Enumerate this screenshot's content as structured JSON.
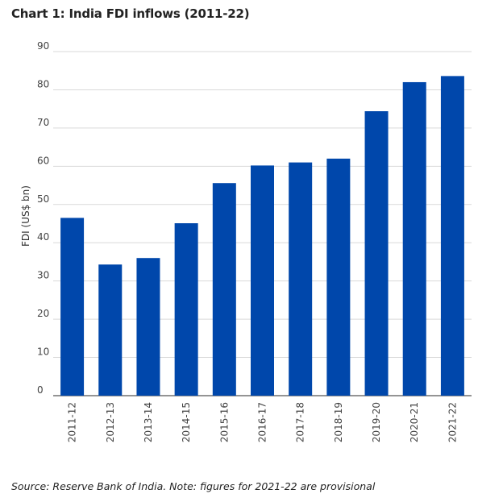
{
  "chart_data": {
    "type": "bar",
    "title": "Chart 1: India FDI inflows (2011-22)",
    "ylabel": "FDI (US$ bn)",
    "xlabel": "",
    "categories": [
      "2011-12",
      "2012-13",
      "2013-14",
      "2014-15",
      "2015-16",
      "2016-17",
      "2017-18",
      "2018-19",
      "2019-20",
      "2020-21",
      "2021-22"
    ],
    "values": [
      46.5,
      34.3,
      36.0,
      45.1,
      55.6,
      60.2,
      61.0,
      62.0,
      74.4,
      82.0,
      83.6
    ],
    "ylim": [
      0,
      90
    ],
    "yticks": [
      0,
      10,
      20,
      30,
      40,
      50,
      60,
      70,
      80,
      90
    ],
    "grid": true,
    "bar_color": "#0047AB",
    "source": "Source: Reserve Bank of India. Note: figures for 2021-22 are provisional"
  }
}
